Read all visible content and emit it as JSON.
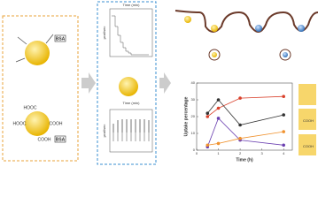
{
  "left": {
    "protein_top": "BSA",
    "protein_bottom": "BSA",
    "groups": [
      "HOOC",
      "COOH",
      "HOOC",
      "COOH"
    ]
  },
  "middle": {
    "top_plot": {
      "xlabel": "Time (min)",
      "ylabel": "µcal/sec"
    },
    "bottom_plot": {
      "xlabel": "Time (min)",
      "ylabel": "µcal/sec"
    }
  },
  "chart_data": {
    "type": "line",
    "xlabel": "Time (h)",
    "ylabel": "Uptake percentage",
    "x": [
      0.5,
      1,
      2,
      4
    ],
    "xlim": [
      0,
      4.4
    ],
    "xticks": [
      0,
      1,
      2,
      3,
      4
    ],
    "ylim": [
      0,
      40
    ],
    "yticks": [
      0,
      10,
      20,
      30,
      40
    ],
    "series": [
      {
        "color": "#d9402b",
        "values": [
          20,
          25,
          31,
          32
        ]
      },
      {
        "color": "#333333",
        "values": [
          22,
          30,
          15,
          21
        ]
      },
      {
        "color": "#6a3fb0",
        "values": [
          2,
          19,
          6,
          3
        ]
      },
      {
        "color": "#f0922e",
        "values": [
          3,
          4,
          7,
          11
        ]
      }
    ]
  },
  "right": {
    "labels": [
      "COOH",
      "COOH"
    ]
  }
}
